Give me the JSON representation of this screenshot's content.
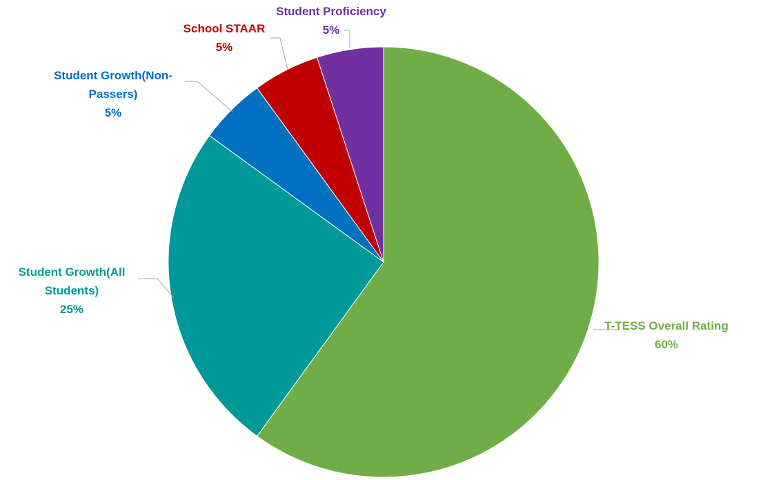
{
  "chart_data": {
    "type": "pie",
    "title": "",
    "categories": [
      "T-TESS Overall Rating",
      "Student Growth(All Students)",
      "Student Growth(Non-Passers)",
      "School STAAR",
      "Student Proficiency"
    ],
    "values": [
      60,
      25,
      5,
      5,
      5
    ],
    "labels": [
      {
        "lines": [
          "T-TESS Overall Rating"
        ],
        "pct": "60%"
      },
      {
        "lines": [
          "Student Growth(All",
          "Students)"
        ],
        "pct": "25%"
      },
      {
        "lines": [
          "Student Growth(Non-",
          "Passers)"
        ],
        "pct": "5%"
      },
      {
        "lines": [
          "School STAAR"
        ],
        "pct": "5%"
      },
      {
        "lines": [
          "Student Proficiency"
        ],
        "pct": "5%"
      }
    ],
    "colors": [
      "#70ad47",
      "#009999",
      "#0070c0",
      "#c00000",
      "#7030a0"
    ],
    "label_colors": [
      "#70ad47",
      "#009999",
      "#0070c0",
      "#c00000",
      "#7030a0"
    ],
    "legend": "none",
    "start_angle": "12 o'clock",
    "direction": "clockwise"
  }
}
